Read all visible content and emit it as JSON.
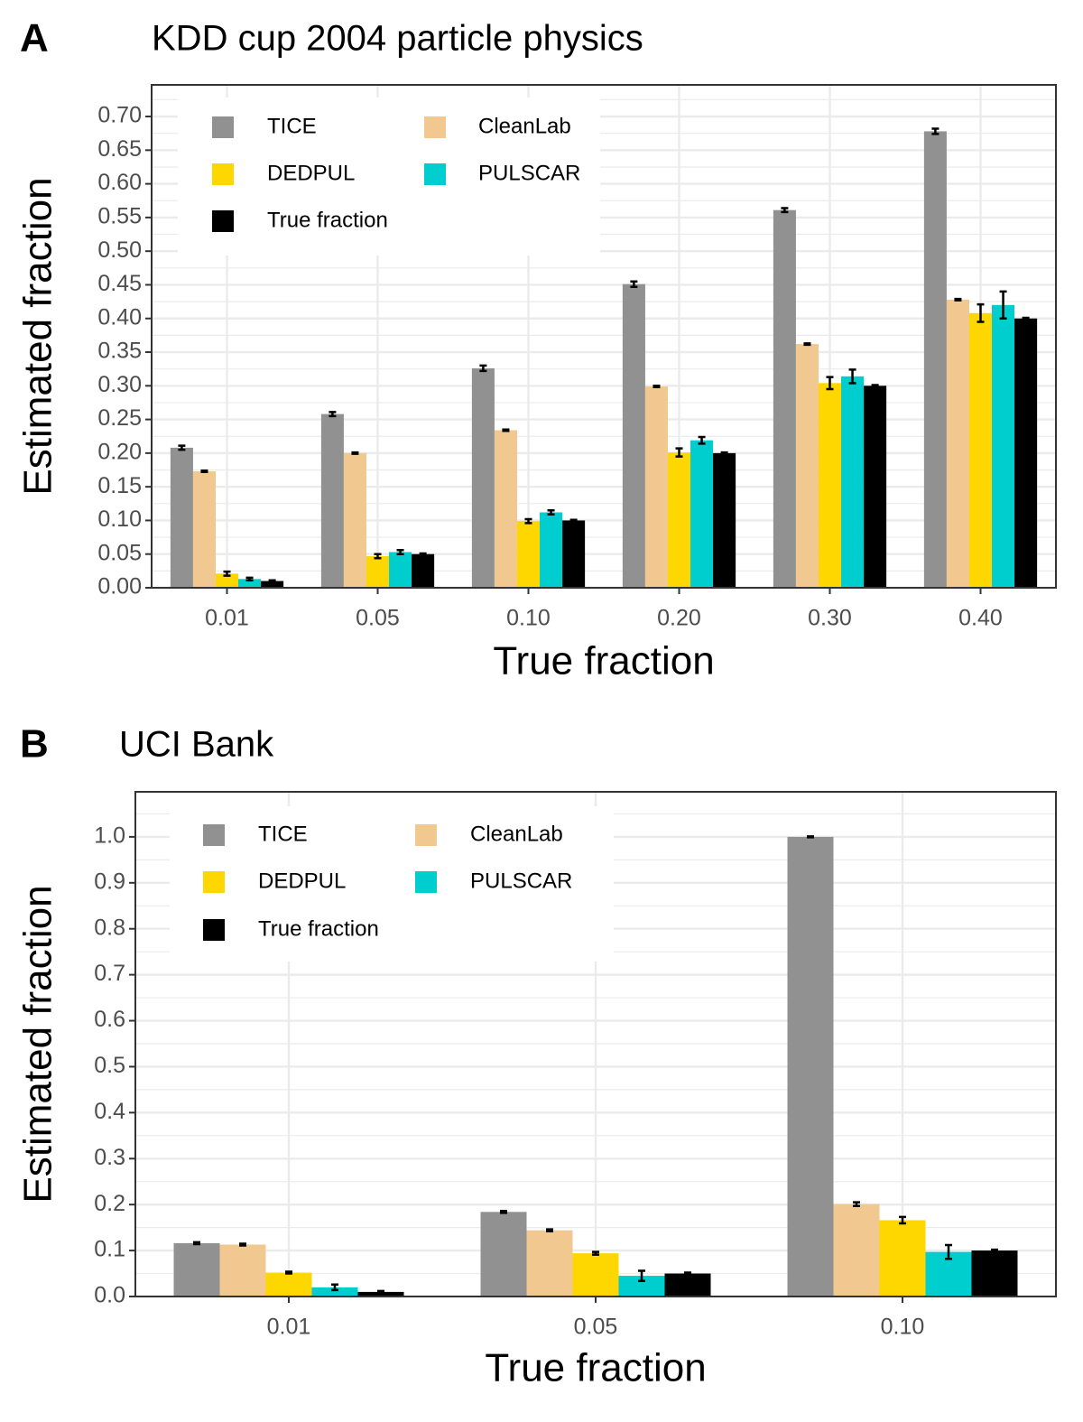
{
  "chart_data": [
    {
      "type": "bar",
      "panel_label": "A",
      "title": "KDD cup 2004 particle physics",
      "x_label": "True fraction",
      "y_label": "Estimated fraction",
      "categories": [
        "0.01",
        "0.05",
        "0.10",
        "0.20",
        "0.30",
        "0.40"
      ],
      "series": [
        {
          "name": "TICE",
          "color": "#919191",
          "values": [
            0.208,
            0.258,
            0.326,
            0.451,
            0.561,
            0.678
          ],
          "errors": [
            0.003,
            0.003,
            0.004,
            0.004,
            0.003,
            0.004
          ]
        },
        {
          "name": "CleanLab",
          "color": "#f0c890",
          "values": [
            0.173,
            0.2,
            0.234,
            0.299,
            0.362,
            0.428
          ],
          "errors": [
            0.001,
            0.001,
            0.001,
            0.001,
            0.001,
            0.001
          ]
        },
        {
          "name": "DEDPUL",
          "color": "#ffd700",
          "values": [
            0.021,
            0.047,
            0.099,
            0.201,
            0.304,
            0.408
          ],
          "errors": [
            0.003,
            0.003,
            0.003,
            0.006,
            0.009,
            0.013
          ]
        },
        {
          "name": "PULSCAR",
          "color": "#00cdcd",
          "values": [
            0.013,
            0.053,
            0.112,
            0.219,
            0.314,
            0.42
          ],
          "errors": [
            0.002,
            0.003,
            0.003,
            0.005,
            0.01,
            0.02
          ]
        },
        {
          "name": "True fraction",
          "color": "#000000",
          "values": [
            0.01,
            0.05,
            0.1,
            0.2,
            0.3,
            0.4
          ],
          "errors": [
            0.001,
            0.001,
            0.001,
            0.001,
            0.001,
            0.001
          ]
        }
      ],
      "ylim": [
        0,
        0.747
      ],
      "yticks": [
        {
          "value": 0,
          "label": "0.00"
        },
        {
          "value": 0.05,
          "label": "0.05"
        },
        {
          "value": 0.1,
          "label": "0.10"
        },
        {
          "value": 0.15,
          "label": "0.15"
        },
        {
          "value": 0.2,
          "label": "0.20"
        },
        {
          "value": 0.25,
          "label": "0.25"
        },
        {
          "value": 0.3,
          "label": "0.30"
        },
        {
          "value": 0.35,
          "label": "0.35"
        },
        {
          "value": 0.4,
          "label": "0.40"
        },
        {
          "value": 0.45,
          "label": "0.45"
        },
        {
          "value": 0.5,
          "label": "0.50"
        },
        {
          "value": 0.55,
          "label": "0.55"
        },
        {
          "value": 0.6,
          "label": "0.60"
        },
        {
          "value": 0.65,
          "label": "0.65"
        },
        {
          "value": 0.7,
          "label": "0.70"
        }
      ],
      "grid": true,
      "legend_position": "top-left"
    },
    {
      "type": "bar",
      "panel_label": "B",
      "title": "UCI Bank",
      "x_label": "True fraction",
      "y_label": "Estimated fraction",
      "categories": [
        "0.01",
        "0.05",
        "0.10"
      ],
      "series": [
        {
          "name": "TICE",
          "color": "#919191",
          "values": [
            0.116,
            0.184,
            1.0
          ],
          "errors": [
            0.002,
            0.002,
            0.001
          ]
        },
        {
          "name": "CleanLab",
          "color": "#f0c890",
          "values": [
            0.113,
            0.144,
            0.201
          ],
          "errors": [
            0.002,
            0.002,
            0.004
          ]
        },
        {
          "name": "DEDPUL",
          "color": "#ffd700",
          "values": [
            0.052,
            0.094,
            0.166
          ],
          "errors": [
            0.002,
            0.003,
            0.007
          ]
        },
        {
          "name": "PULSCAR",
          "color": "#00cdcd",
          "values": [
            0.02,
            0.045,
            0.097
          ],
          "errors": [
            0.006,
            0.011,
            0.015
          ]
        },
        {
          "name": "True fraction",
          "color": "#000000",
          "values": [
            0.01,
            0.05,
            0.1
          ],
          "errors": [
            0.002,
            0.002,
            0.002
          ]
        }
      ],
      "ylim": [
        0,
        1.098
      ],
      "yticks": [
        {
          "value": 0,
          "label": "0.0"
        },
        {
          "value": 0.1,
          "label": "0.1"
        },
        {
          "value": 0.2,
          "label": "0.2"
        },
        {
          "value": 0.3,
          "label": "0.3"
        },
        {
          "value": 0.4,
          "label": "0.4"
        },
        {
          "value": 0.5,
          "label": "0.5"
        },
        {
          "value": 0.6,
          "label": "0.6"
        },
        {
          "value": 0.7,
          "label": "0.7"
        },
        {
          "value": 0.8,
          "label": "0.8"
        },
        {
          "value": 0.9,
          "label": "0.9"
        },
        {
          "value": 1.0,
          "label": "1.0"
        }
      ],
      "grid": true,
      "legend_position": "top-left"
    }
  ]
}
